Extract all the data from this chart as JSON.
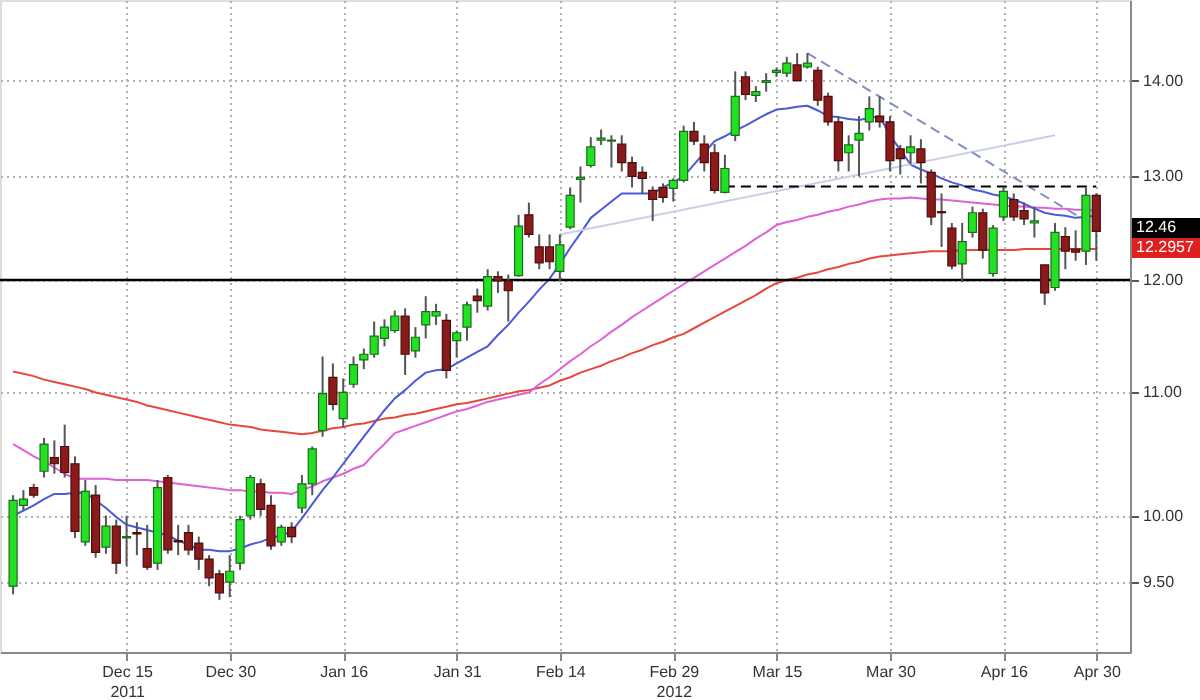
{
  "chart_data": {
    "type": "candlestick",
    "categories": [
      null,
      null,
      null,
      null,
      null,
      null,
      null,
      null,
      null,
      null,
      null,
      "Dec 15\n2011",
      null,
      null,
      null,
      null,
      null,
      null,
      null,
      null,
      null,
      "Dec 30",
      null,
      null,
      null,
      null,
      null,
      null,
      null,
      null,
      null,
      null,
      "Jan 16",
      null,
      null,
      null,
      null,
      null,
      null,
      null,
      null,
      null,
      null,
      "Jan 31",
      null,
      null,
      null,
      null,
      null,
      null,
      null,
      null,
      null,
      "Feb 14",
      null,
      null,
      null,
      null,
      null,
      null,
      null,
      null,
      null,
      null,
      "Feb 29\n2012",
      null,
      null,
      null,
      null,
      null,
      null,
      null,
      null,
      null,
      "Mar 15",
      null,
      null,
      null,
      null,
      null,
      null,
      null,
      null,
      null,
      null,
      "Mar 30",
      null,
      null,
      null,
      null,
      null,
      null,
      null,
      null,
      null,
      null,
      "Apr 16",
      null,
      null,
      null,
      null,
      null,
      null,
      null,
      null,
      "Apr 30"
    ],
    "ohlc": [
      [
        9.47,
        10.16,
        9.41,
        10.12
      ],
      [
        10.08,
        10.2,
        10.04,
        10.13
      ],
      [
        10.22,
        10.25,
        10.14,
        10.16
      ],
      [
        10.35,
        10.62,
        10.3,
        10.57
      ],
      [
        10.46,
        10.6,
        10.33,
        10.41
      ],
      [
        10.55,
        10.73,
        10.3,
        10.34
      ],
      [
        10.41,
        10.47,
        9.83,
        9.88
      ],
      [
        9.8,
        10.28,
        9.77,
        10.19
      ],
      [
        10.16,
        10.24,
        9.68,
        9.72
      ],
      [
        9.76,
        10.0,
        9.71,
        9.92
      ],
      [
        9.92,
        9.97,
        9.56,
        9.64
      ],
      [
        9.83,
        10.0,
        9.62,
        9.84
      ],
      [
        9.87,
        9.95,
        9.7,
        9.86
      ],
      [
        9.75,
        9.93,
        9.59,
        9.61
      ],
      [
        9.64,
        10.28,
        9.59,
        10.22
      ],
      [
        10.3,
        10.32,
        9.71,
        9.74
      ],
      [
        9.81,
        9.93,
        9.7,
        9.8
      ],
      [
        9.87,
        9.93,
        9.7,
        9.74
      ],
      [
        9.79,
        9.84,
        9.59,
        9.67
      ],
      [
        9.67,
        9.7,
        9.47,
        9.53
      ],
      [
        9.56,
        9.59,
        9.37,
        9.42
      ],
      [
        9.5,
        9.7,
        9.39,
        9.58
      ],
      [
        9.64,
        10.0,
        9.59,
        9.97
      ],
      [
        10.0,
        10.32,
        9.97,
        10.3
      ],
      [
        10.25,
        10.29,
        10.0,
        10.05
      ],
      [
        10.08,
        10.16,
        9.74,
        9.77
      ],
      [
        9.8,
        9.93,
        9.77,
        9.91
      ],
      [
        9.91,
        9.95,
        9.79,
        9.84
      ],
      [
        10.06,
        10.32,
        10.02,
        10.25
      ],
      [
        10.25,
        10.55,
        10.16,
        10.53
      ],
      [
        10.68,
        11.31,
        10.63,
        10.99
      ],
      [
        11.13,
        11.25,
        10.85,
        10.9
      ],
      [
        10.78,
        11.12,
        10.71,
        11.0
      ],
      [
        11.07,
        11.31,
        11.04,
        11.24
      ],
      [
        11.28,
        11.38,
        11.2,
        11.33
      ],
      [
        11.33,
        11.62,
        11.3,
        11.49
      ],
      [
        11.47,
        11.64,
        11.4,
        11.57
      ],
      [
        11.54,
        11.72,
        11.52,
        11.67
      ],
      [
        11.67,
        11.74,
        11.15,
        11.33
      ],
      [
        11.36,
        11.57,
        11.3,
        11.48
      ],
      [
        11.59,
        11.85,
        11.47,
        11.71
      ],
      [
        11.67,
        11.78,
        11.59,
        11.71
      ],
      [
        11.63,
        11.69,
        11.12,
        11.19
      ],
      [
        11.45,
        11.54,
        11.3,
        11.52
      ],
      [
        11.57,
        11.8,
        11.45,
        11.77
      ],
      [
        11.85,
        11.92,
        11.7,
        11.81
      ],
      [
        11.76,
        12.1,
        11.72,
        12.03
      ],
      [
        12.03,
        12.08,
        11.88,
        11.99
      ],
      [
        11.99,
        12.05,
        11.62,
        11.9
      ],
      [
        12.04,
        12.62,
        12.03,
        12.51
      ],
      [
        12.62,
        12.74,
        12.4,
        12.43
      ],
      [
        12.31,
        12.43,
        12.1,
        12.16
      ],
      [
        12.31,
        12.43,
        12.1,
        12.17
      ],
      [
        12.08,
        12.43,
        11.99,
        12.33
      ],
      [
        12.5,
        12.89,
        12.48,
        12.81
      ],
      [
        12.97,
        13.1,
        12.74,
        12.99
      ],
      [
        13.11,
        13.4,
        13.09,
        13.3
      ],
      [
        13.37,
        13.48,
        13.32,
        13.39
      ],
      [
        13.36,
        13.42,
        13.09,
        13.37
      ],
      [
        13.33,
        13.42,
        13.05,
        13.14
      ],
      [
        13.14,
        13.2,
        12.89,
        13.0
      ],
      [
        13.04,
        13.1,
        12.83,
        12.98
      ],
      [
        12.86,
        12.9,
        12.56,
        12.77
      ],
      [
        12.89,
        12.93,
        12.74,
        12.79
      ],
      [
        12.88,
        12.98,
        12.75,
        12.96
      ],
      [
        12.96,
        13.52,
        12.94,
        13.46
      ],
      [
        13.46,
        13.56,
        13.32,
        13.36
      ],
      [
        13.33,
        13.42,
        13.05,
        13.14
      ],
      [
        13.24,
        13.33,
        12.83,
        12.86
      ],
      [
        12.84,
        13.22,
        12.83,
        13.08
      ],
      [
        13.42,
        14.1,
        13.36,
        13.83
      ],
      [
        14.04,
        14.1,
        13.79,
        13.85
      ],
      [
        13.84,
        13.94,
        13.77,
        13.88
      ],
      [
        13.98,
        14.08,
        13.88,
        14.0
      ],
      [
        14.09,
        14.14,
        14.04,
        14.11
      ],
      [
        14.08,
        14.26,
        14.04,
        14.19
      ],
      [
        14.17,
        14.3,
        13.99,
        14.0
      ],
      [
        14.15,
        14.3,
        14.13,
        14.19
      ],
      [
        14.11,
        14.15,
        13.73,
        13.79
      ],
      [
        13.83,
        13.87,
        13.52,
        13.56
      ],
      [
        13.56,
        13.62,
        13.05,
        13.16
      ],
      [
        13.24,
        13.42,
        13.05,
        13.32
      ],
      [
        13.37,
        13.62,
        13.0,
        13.44
      ],
      [
        13.56,
        13.83,
        13.47,
        13.7
      ],
      [
        13.62,
        13.83,
        13.5,
        13.56
      ],
      [
        13.56,
        13.62,
        13.05,
        13.16
      ],
      [
        13.28,
        13.32,
        13.02,
        13.18
      ],
      [
        13.24,
        13.42,
        13.12,
        13.3
      ],
      [
        13.28,
        13.38,
        12.93,
        13.14
      ],
      [
        13.04,
        13.07,
        12.52,
        12.6
      ],
      [
        12.65,
        12.83,
        12.31,
        12.64
      ],
      [
        12.49,
        12.54,
        12.1,
        12.13
      ],
      [
        12.15,
        12.54,
        11.98,
        12.36
      ],
      [
        12.45,
        12.7,
        12.4,
        12.64
      ],
      [
        12.64,
        12.68,
        12.2,
        12.28
      ],
      [
        12.06,
        12.52,
        12.03,
        12.49
      ],
      [
        12.6,
        12.89,
        12.56,
        12.85
      ],
      [
        12.77,
        12.83,
        12.56,
        12.6
      ],
      [
        12.66,
        12.74,
        12.52,
        12.58
      ],
      [
        12.54,
        12.7,
        12.4,
        12.56
      ],
      [
        12.14,
        12.14,
        11.77,
        11.88
      ],
      [
        11.93,
        12.54,
        11.9,
        12.45
      ],
      [
        12.41,
        12.5,
        12.1,
        12.27
      ],
      [
        12.29,
        12.47,
        12.18,
        12.26
      ],
      [
        12.27,
        12.89,
        12.14,
        12.81
      ],
      [
        12.81,
        12.83,
        12.18,
        12.46
      ]
    ],
    "series": [
      {
        "type": "line",
        "color": "#e8483c",
        "values": [
          11.18,
          11.16,
          11.14,
          11.11,
          11.09,
          11.07,
          11.05,
          11.03,
          11.0,
          10.98,
          10.96,
          10.94,
          10.92,
          10.89,
          10.87,
          10.85,
          10.83,
          10.81,
          10.79,
          10.77,
          10.75,
          10.73,
          10.72,
          10.71,
          10.69,
          10.68,
          10.67,
          10.66,
          10.65,
          10.66,
          10.68,
          10.7,
          10.71,
          10.73,
          10.74,
          10.76,
          10.78,
          10.79,
          10.81,
          10.82,
          10.84,
          10.86,
          10.88,
          10.9,
          10.91,
          10.93,
          10.95,
          10.97,
          10.99,
          11.01,
          11.02,
          11.04,
          11.06,
          11.1,
          11.13,
          11.17,
          11.2,
          11.23,
          11.27,
          11.3,
          11.34,
          11.37,
          11.41,
          11.44,
          11.48,
          11.51,
          11.56,
          11.61,
          11.66,
          11.71,
          11.76,
          11.81,
          11.86,
          11.92,
          11.97,
          12.0,
          12.02,
          12.05,
          12.07,
          12.1,
          12.12,
          12.15,
          12.17,
          12.2,
          12.22,
          12.23,
          12.24,
          12.25,
          12.26,
          12.27,
          12.27,
          12.27,
          12.28,
          12.28,
          12.28,
          12.28,
          12.28,
          12.28,
          12.29,
          12.29,
          12.29,
          12.29,
          12.29,
          12.29,
          12.29,
          12.29
        ]
      },
      {
        "type": "line",
        "color": "#e060d8",
        "values": [
          10.57,
          10.52,
          10.47,
          10.43,
          10.38,
          10.33,
          10.29,
          10.29,
          10.29,
          10.29,
          10.28,
          10.28,
          10.28,
          10.28,
          10.27,
          10.26,
          10.25,
          10.24,
          10.23,
          10.22,
          10.21,
          10.2,
          10.2,
          10.19,
          10.19,
          10.18,
          10.18,
          10.17,
          10.2,
          10.23,
          10.27,
          10.3,
          10.33,
          10.37,
          10.4,
          10.49,
          10.57,
          10.66,
          10.69,
          10.72,
          10.75,
          10.78,
          10.81,
          10.84,
          10.86,
          10.89,
          10.92,
          10.94,
          10.96,
          10.98,
          11.0,
          11.07,
          11.13,
          11.2,
          11.27,
          11.33,
          11.4,
          11.46,
          11.53,
          11.59,
          11.66,
          11.72,
          11.78,
          11.84,
          11.9,
          11.96,
          12.02,
          12.08,
          12.14,
          12.2,
          12.26,
          12.32,
          12.39,
          12.45,
          12.52,
          12.55,
          12.57,
          12.6,
          12.62,
          12.65,
          12.67,
          12.7,
          12.72,
          12.75,
          12.77,
          12.78,
          12.78,
          12.79,
          12.78,
          12.77,
          12.77,
          12.76,
          12.75,
          12.74,
          12.73,
          12.72,
          12.71,
          12.7,
          12.7,
          12.69,
          12.69,
          12.68,
          12.68,
          12.67,
          12.67,
          12.66
        ]
      },
      {
        "type": "line",
        "color": "#4a5ad8",
        "values": [
          10.0,
          10.04,
          10.08,
          10.13,
          10.17,
          10.17,
          10.18,
          10.18,
          10.12,
          10.06,
          9.99,
          9.93,
          9.91,
          9.89,
          9.87,
          9.85,
          9.81,
          9.78,
          9.74,
          9.74,
          9.73,
          9.73,
          9.75,
          9.78,
          9.8,
          9.83,
          9.85,
          9.88,
          9.98,
          10.09,
          10.2,
          10.3,
          10.41,
          10.52,
          10.63,
          10.74,
          10.85,
          10.95,
          11.02,
          11.1,
          11.17,
          11.19,
          11.2,
          11.25,
          11.3,
          11.35,
          11.4,
          11.5,
          11.59,
          11.7,
          11.8,
          11.91,
          12.01,
          12.15,
          12.3,
          12.44,
          12.59,
          12.67,
          12.75,
          12.83,
          12.83,
          12.83,
          12.83,
          12.89,
          12.94,
          13.0,
          13.12,
          13.24,
          13.36,
          13.41,
          13.47,
          13.52,
          13.58,
          13.64,
          13.69,
          13.7,
          13.72,
          13.73,
          13.68,
          13.62,
          13.61,
          13.59,
          13.58,
          13.6,
          13.62,
          13.42,
          13.27,
          13.12,
          13.07,
          13.03,
          12.98,
          12.94,
          12.91,
          12.87,
          12.85,
          12.82,
          12.8,
          12.77,
          12.73,
          12.68,
          12.64,
          12.62,
          12.61,
          12.59,
          12.6,
          12.61
        ]
      },
      {
        "type": "line",
        "color": "#c8d0e8",
        "values": [
          null,
          null,
          null,
          null,
          null,
          null,
          null,
          null,
          null,
          null,
          null,
          null,
          null,
          null,
          null,
          null,
          null,
          null,
          null,
          null,
          null,
          null,
          null,
          null,
          null,
          null,
          null,
          null,
          null,
          null,
          null,
          null,
          null,
          null,
          null,
          null,
          null,
          null,
          null,
          null,
          null,
          null,
          null,
          null,
          null,
          null,
          null,
          null,
          null,
          null,
          null,
          null,
          null,
          12.43,
          null,
          null,
          null,
          null,
          null,
          null,
          null,
          null,
          null,
          null,
          null,
          null,
          null,
          null,
          null,
          null,
          null,
          null,
          null,
          null,
          null,
          null,
          null,
          null,
          null,
          null,
          null,
          null,
          null,
          null,
          null,
          null,
          null,
          null,
          null,
          null,
          null,
          null,
          null,
          null,
          null,
          null,
          null,
          null,
          null,
          null,
          null,
          13.42,
          null,
          null,
          null,
          null
        ]
      },
      {
        "type": "line",
        "color": "#8090c0",
        "line_style": "dashed",
        "values": [
          null,
          null,
          null,
          null,
          null,
          null,
          null,
          null,
          null,
          null,
          null,
          null,
          null,
          null,
          null,
          null,
          null,
          null,
          null,
          null,
          null,
          null,
          null,
          null,
          null,
          null,
          null,
          null,
          null,
          null,
          null,
          null,
          null,
          null,
          null,
          null,
          null,
          null,
          null,
          null,
          null,
          null,
          null,
          null,
          null,
          null,
          null,
          null,
          null,
          null,
          null,
          null,
          null,
          null,
          null,
          null,
          null,
          null,
          null,
          null,
          null,
          null,
          null,
          null,
          null,
          null,
          null,
          null,
          null,
          null,
          null,
          null,
          null,
          null,
          null,
          null,
          null,
          14.3,
          null,
          null,
          null,
          null,
          null,
          null,
          null,
          null,
          null,
          null,
          null,
          null,
          null,
          null,
          null,
          null,
          null,
          null,
          null,
          null,
          null,
          null,
          null,
          null,
          null,
          null,
          null,
          12.5
        ]
      },
      {
        "type": "line",
        "color": "#000000",
        "line_style": "dashed",
        "values": [
          null,
          null,
          null,
          null,
          null,
          null,
          null,
          null,
          null,
          null,
          null,
          null,
          null,
          null,
          null,
          null,
          null,
          null,
          null,
          null,
          null,
          null,
          null,
          null,
          null,
          null,
          null,
          null,
          null,
          null,
          null,
          null,
          null,
          null,
          null,
          null,
          null,
          null,
          null,
          null,
          null,
          null,
          null,
          null,
          null,
          null,
          null,
          null,
          null,
          null,
          null,
          null,
          null,
          null,
          null,
          null,
          null,
          null,
          null,
          null,
          null,
          null,
          null,
          null,
          null,
          null,
          null,
          null,
          null,
          12.9,
          null,
          null,
          null,
          null,
          null,
          null,
          null,
          null,
          null,
          null,
          null,
          null,
          null,
          null,
          null,
          null,
          null,
          null,
          null,
          null,
          null,
          null,
          null,
          null,
          null,
          null,
          null,
          null,
          null,
          null,
          null,
          null,
          null,
          null,
          null,
          12.9
        ]
      }
    ],
    "ref_lines": [
      {
        "axis": "y",
        "value": 12.0,
        "color": "#000000"
      }
    ],
    "annotations": [
      "12.46",
      "12.2957"
    ],
    "log": true,
    "ylim": [
      9.0,
      14.9
    ],
    "yticks": [
      {
        "value": 9.5,
        "label": "9.50"
      },
      {
        "value": 10,
        "label": "10.00"
      },
      {
        "value": 11,
        "label": "11.00"
      },
      {
        "value": 12,
        "label": "12.00"
      },
      {
        "value": 13,
        "label": "13.00"
      },
      {
        "value": 14,
        "label": "14.00"
      }
    ],
    "grid": true
  }
}
